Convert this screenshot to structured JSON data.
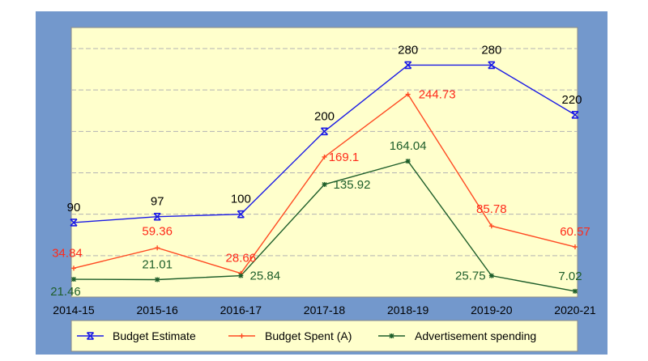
{
  "chart_data": {
    "type": "line",
    "categories": [
      "2014-15",
      "2015-16",
      "2016-17",
      "2017-18",
      "2018-19",
      "2019-20",
      "2020-21"
    ],
    "series": [
      {
        "name": "Budget Estimate",
        "values": [
          90,
          97,
          100,
          200,
          280,
          280,
          220
        ],
        "color": "#1a1ae6",
        "marker": "x-bar",
        "labels": [
          "90",
          "97",
          "100",
          "200",
          "280",
          "280",
          "220"
        ],
        "label_color": "#000000"
      },
      {
        "name": "Budget Spent (A)",
        "values": [
          34.84,
          59.36,
          28.66,
          169.1,
          244.73,
          85.78,
          60.57
        ],
        "color": "#ff4a22",
        "marker": "plus",
        "labels": [
          "34.84",
          "59.36",
          "28.66",
          "169.1",
          "244.73",
          "85.78",
          "60.57"
        ],
        "label_color": "#ff2a1a"
      },
      {
        "name": "Advertisement spending",
        "values": [
          21.46,
          21.01,
          25.84,
          135.92,
          164.04,
          25.75,
          7.02
        ],
        "color": "#1e5e2a",
        "marker": "star",
        "labels": [
          "21.46",
          "21.01",
          "25.84",
          "135.92",
          "164.04",
          "25.75",
          "7.02"
        ],
        "label_color": "#1e5e2a"
      }
    ],
    "ylim": [
      0,
      300
    ],
    "grid": true,
    "legend_position": "bottom",
    "colors": {
      "frame": "#7398cc",
      "plot_bg": "#ffffcc",
      "grid": "#b3b3b3"
    }
  }
}
